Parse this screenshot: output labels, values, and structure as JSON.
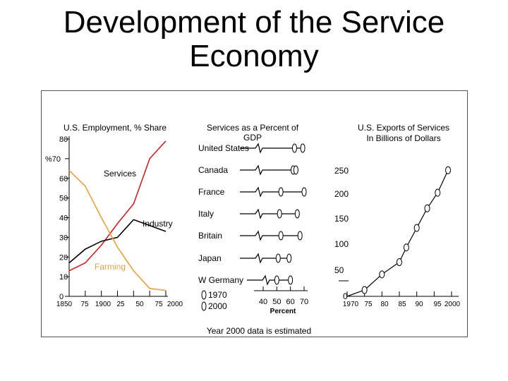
{
  "title_line1": "Development of the Service",
  "title_line2": "Economy",
  "footnote": "Year 2000 data is estimated",
  "chart_data": [
    {
      "type": "line",
      "title": "U.S. Employment, % Share",
      "ylabel": "%",
      "y_ticks": [
        "80",
        "%70",
        "60",
        "50",
        "40",
        "30",
        "20",
        "10",
        "0"
      ],
      "x_ticks": [
        "1850",
        "75",
        "1900",
        "25",
        "50",
        "75",
        "2000"
      ],
      "x": [
        1850,
        1875,
        1900,
        1925,
        1950,
        1975,
        2000
      ],
      "ylim": [
        0,
        80
      ],
      "series": [
        {
          "name": "Services",
          "color": "#cc2222",
          "values": [
            13,
            17,
            26,
            37,
            47,
            70,
            79
          ]
        },
        {
          "name": "Industry",
          "color": "#000000",
          "values": [
            17,
            24,
            28,
            30,
            39,
            36,
            33
          ]
        },
        {
          "name": "Farming",
          "color": "#e8a040",
          "values": [
            64,
            56,
            40,
            25,
            13,
            4,
            3
          ]
        }
      ]
    },
    {
      "type": "dot",
      "title_lines": [
        "Services as a Percent of",
        "GDP"
      ],
      "countries": [
        "United States",
        "Canada",
        "France",
        "Italy",
        "Britain",
        "Japan",
        "W Germany"
      ],
      "values_1970": [
        63,
        62,
        53,
        52,
        53,
        51,
        50
      ],
      "values_2000": [
        69,
        64,
        70,
        65,
        67,
        59,
        60
      ],
      "legend": [
        "1970",
        "2000"
      ],
      "x_ticks": [
        "40",
        "50",
        "60",
        "70"
      ],
      "xlabel": "Percent"
    },
    {
      "type": "line",
      "title_lines": [
        "U.S. Exports of Services",
        "In Billions of Dollars"
      ],
      "x_ticks": [
        "1970",
        "75",
        "80",
        "85",
        "90",
        "95",
        "2000"
      ],
      "y_ticks": [
        "250",
        "200",
        "150",
        "100",
        "50",
        "0"
      ],
      "x": [
        1975,
        1980,
        1985,
        1987,
        1990,
        1993,
        1996,
        1999
      ],
      "values": [
        13,
        45,
        70,
        100,
        140,
        180,
        212,
        258
      ],
      "ylim": [
        0,
        280
      ]
    }
  ]
}
